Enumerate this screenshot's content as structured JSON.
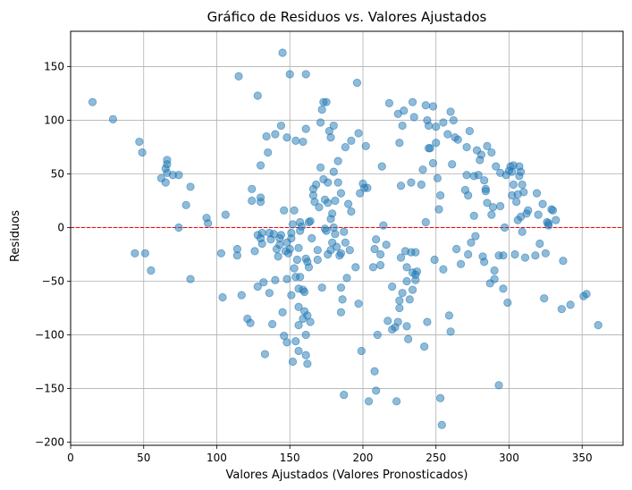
{
  "chart_data": {
    "type": "scatter",
    "title": "Gráfico de Residuos vs. Valores Ajustados",
    "xlabel": "Valores Ajustados (Valores Pronosticados)",
    "ylabel": "Residuos",
    "xlim": [
      0,
      378
    ],
    "ylim": [
      -203,
      183
    ],
    "xticks": [
      0,
      50,
      100,
      150,
      200,
      250,
      300,
      350
    ],
    "yticks": [
      -200,
      -150,
      -100,
      -50,
      0,
      50,
      100,
      150
    ],
    "grid": true,
    "point_color": "#1f77b4",
    "point_alpha": 0.5,
    "reference_line": {
      "y": 0,
      "color": "#ff0000",
      "style": "dashed"
    },
    "points": [
      [
        15,
        117
      ],
      [
        29,
        101
      ],
      [
        44,
        -24
      ],
      [
        47,
        80
      ],
      [
        49,
        70
      ],
      [
        51,
        -24
      ],
      [
        55,
        -40
      ],
      [
        62,
        46
      ],
      [
        65,
        55
      ],
      [
        65,
        42
      ],
      [
        66,
        59
      ],
      [
        66,
        63
      ],
      [
        66,
        51
      ],
      [
        70,
        49
      ],
      [
        74,
        0
      ],
      [
        74,
        49
      ],
      [
        79,
        21
      ],
      [
        82,
        38
      ],
      [
        82,
        -48
      ],
      [
        93,
        9
      ],
      [
        94,
        4
      ],
      [
        103,
        -24
      ],
      [
        104,
        -65
      ],
      [
        106,
        12
      ],
      [
        114,
        -20
      ],
      [
        114,
        -26
      ],
      [
        115,
        141
      ],
      [
        117,
        -63
      ],
      [
        121,
        -85
      ],
      [
        123,
        -89
      ],
      [
        124,
        36
      ],
      [
        124,
        25
      ],
      [
        126,
        -22
      ],
      [
        128,
        123
      ],
      [
        128,
        -7
      ],
      [
        128,
        -55
      ],
      [
        130,
        24
      ],
      [
        130,
        28
      ],
      [
        130,
        58
      ],
      [
        130,
        -10
      ],
      [
        131,
        -5
      ],
      [
        131,
        -15
      ],
      [
        132,
        -51
      ],
      [
        133,
        -118
      ],
      [
        134,
        85
      ],
      [
        135,
        70
      ],
      [
        136,
        -61
      ],
      [
        136,
        -5
      ],
      [
        137,
        -11
      ],
      [
        138,
        -90
      ],
      [
        139,
        -6
      ],
      [
        140,
        -49
      ],
      [
        140,
        87
      ],
      [
        141,
        -20
      ],
      [
        142,
        -27
      ],
      [
        143,
        -10
      ],
      [
        143,
        -16
      ],
      [
        144,
        95
      ],
      [
        144,
        -7
      ],
      [
        145,
        163
      ],
      [
        145,
        -79
      ],
      [
        146,
        -101
      ],
      [
        146,
        16
      ],
      [
        147,
        -22
      ],
      [
        148,
        -107
      ],
      [
        148,
        -48
      ],
      [
        148,
        -14
      ],
      [
        148,
        84
      ],
      [
        149,
        -24
      ],
      [
        150,
        143
      ],
      [
        150,
        -20
      ],
      [
        151,
        -63
      ],
      [
        151,
        -5
      ],
      [
        151,
        -10
      ],
      [
        152,
        -125
      ],
      [
        152,
        3
      ],
      [
        153,
        16
      ],
      [
        153,
        -38
      ],
      [
        154,
        -106
      ],
      [
        154,
        -46
      ],
      [
        154,
        81
      ],
      [
        155,
        -30
      ],
      [
        156,
        -115
      ],
      [
        156,
        -91
      ],
      [
        156,
        -57
      ],
      [
        156,
        -74
      ],
      [
        156,
        -19
      ],
      [
        157,
        -46
      ],
      [
        157,
        -3
      ],
      [
        157,
        5
      ],
      [
        158,
        1
      ],
      [
        159,
        -58
      ],
      [
        159,
        -85
      ],
      [
        159,
        80
      ],
      [
        160,
        -60
      ],
      [
        160,
        -78
      ],
      [
        161,
        143
      ],
      [
        161,
        -119
      ],
      [
        161,
        -100
      ],
      [
        161,
        -29
      ],
      [
        161,
        92
      ],
      [
        162,
        -127
      ],
      [
        162,
        -82
      ],
      [
        162,
        -32
      ],
      [
        163,
        5
      ],
      [
        163,
        -37
      ],
      [
        164,
        -88
      ],
      [
        164,
        6
      ],
      [
        165,
        -10
      ],
      [
        166,
        30
      ],
      [
        166,
        36
      ],
      [
        167,
        24
      ],
      [
        168,
        40
      ],
      [
        169,
        -30
      ],
      [
        169,
        -21
      ],
      [
        170,
        19
      ],
      [
        171,
        56
      ],
      [
        171,
        98
      ],
      [
        172,
        -56
      ],
      [
        172,
        110
      ],
      [
        173,
        117
      ],
      [
        173,
        45
      ],
      [
        174,
        -1
      ],
      [
        174,
        26
      ],
      [
        175,
        117
      ],
      [
        175,
        -3
      ],
      [
        176,
        -25
      ],
      [
        176,
        42
      ],
      [
        176,
        23
      ],
      [
        177,
        90
      ],
      [
        178,
        8
      ],
      [
        178,
        -21
      ],
      [
        178,
        84
      ],
      [
        179,
        -14
      ],
      [
        179,
        13
      ],
      [
        180,
        52
      ],
      [
        180,
        0
      ],
      [
        180,
        95
      ],
      [
        181,
        25
      ],
      [
        181,
        -6
      ],
      [
        182,
        -18
      ],
      [
        183,
        62
      ],
      [
        183,
        42
      ],
      [
        184,
        -26
      ],
      [
        185,
        -24
      ],
      [
        185,
        -79
      ],
      [
        185,
        32
      ],
      [
        185,
        -56
      ],
      [
        186,
        -67
      ],
      [
        187,
        -156
      ],
      [
        187,
        -4
      ],
      [
        188,
        -14
      ],
      [
        188,
        75
      ],
      [
        189,
        -47
      ],
      [
        190,
        22
      ],
      [
        191,
        -21
      ],
      [
        192,
        15
      ],
      [
        192,
        81
      ],
      [
        195,
        -37
      ],
      [
        196,
        135
      ],
      [
        197,
        -71
      ],
      [
        197,
        88
      ],
      [
        198,
        32
      ],
      [
        199,
        -115
      ],
      [
        200,
        41
      ],
      [
        201,
        37
      ],
      [
        202,
        76
      ],
      [
        203,
        37
      ],
      [
        204,
        -162
      ],
      [
        207,
        -37
      ],
      [
        208,
        -134
      ],
      [
        208,
        -20
      ],
      [
        209,
        -11
      ],
      [
        209,
        -152
      ],
      [
        210,
        -100
      ],
      [
        212,
        -25
      ],
      [
        212,
        -35
      ],
      [
        213,
        57
      ],
      [
        214,
        2
      ],
      [
        216,
        -16
      ],
      [
        217,
        -87
      ],
      [
        218,
        116
      ],
      [
        220,
        -95
      ],
      [
        220,
        -55
      ],
      [
        222,
        -93
      ],
      [
        223,
        -162
      ],
      [
        224,
        -88
      ],
      [
        224,
        106
      ],
      [
        225,
        79
      ],
      [
        225,
        -68
      ],
      [
        225,
        -75
      ],
      [
        226,
        -28
      ],
      [
        226,
        39
      ],
      [
        227,
        -61
      ],
      [
        227,
        95
      ],
      [
        228,
        109
      ],
      [
        229,
        -22
      ],
      [
        230,
        -92
      ],
      [
        230,
        -37
      ],
      [
        230,
        -50
      ],
      [
        231,
        -104
      ],
      [
        232,
        -67
      ],
      [
        233,
        42
      ],
      [
        233,
        -23
      ],
      [
        234,
        -42
      ],
      [
        234,
        117
      ],
      [
        234,
        -58
      ],
      [
        235,
        103
      ],
      [
        236,
        -23
      ],
      [
        236,
        -49
      ],
      [
        236,
        -44
      ],
      [
        237,
        -41
      ],
      [
        240,
        40
      ],
      [
        241,
        54
      ],
      [
        242,
        -111
      ],
      [
        243,
        5
      ],
      [
        243,
        114
      ],
      [
        244,
        -88
      ],
      [
        244,
        100
      ],
      [
        245,
        95
      ],
      [
        245,
        74
      ],
      [
        246,
        74
      ],
      [
        248,
        60
      ],
      [
        248,
        113
      ],
      [
        249,
        -30
      ],
      [
        250,
        79
      ],
      [
        250,
        94
      ],
      [
        251,
        46
      ],
      [
        252,
        17
      ],
      [
        253,
        30
      ],
      [
        253,
        -159
      ],
      [
        254,
        -184
      ],
      [
        255,
        -39
      ],
      [
        255,
        98
      ],
      [
        258,
        87
      ],
      [
        259,
        -82
      ],
      [
        260,
        -97
      ],
      [
        260,
        108
      ],
      [
        261,
        59
      ],
      [
        262,
        100
      ],
      [
        263,
        84
      ],
      [
        264,
        -20
      ],
      [
        265,
        82
      ],
      [
        267,
        -34
      ],
      [
        270,
        35
      ],
      [
        271,
        49
      ],
      [
        271,
        75
      ],
      [
        272,
        30
      ],
      [
        272,
        -25
      ],
      [
        273,
        90
      ],
      [
        274,
        -14
      ],
      [
        276,
        11
      ],
      [
        276,
        48
      ],
      [
        277,
        -8
      ],
      [
        278,
        72
      ],
      [
        279,
        49
      ],
      [
        280,
        63
      ],
      [
        281,
        68
      ],
      [
        282,
        -27
      ],
      [
        283,
        -32
      ],
      [
        283,
        44
      ],
      [
        284,
        34
      ],
      [
        284,
        36
      ],
      [
        285,
        76
      ],
      [
        285,
        23
      ],
      [
        287,
        -52
      ],
      [
        288,
        70
      ],
      [
        288,
        12
      ],
      [
        289,
        19
      ],
      [
        290,
        -40
      ],
      [
        290,
        -48
      ],
      [
        291,
        57
      ],
      [
        293,
        -147
      ],
      [
        293,
        -26
      ],
      [
        294,
        51
      ],
      [
        294,
        20
      ],
      [
        296,
        -57
      ],
      [
        296,
        -26
      ],
      [
        297,
        0
      ],
      [
        298,
        49
      ],
      [
        299,
        -70
      ],
      [
        300,
        53
      ],
      [
        301,
        57
      ],
      [
        302,
        52
      ],
      [
        302,
        30
      ],
      [
        303,
        40
      ],
      [
        303,
        58
      ],
      [
        304,
        -25
      ],
      [
        305,
        24
      ],
      [
        306,
        31
      ],
      [
        306,
        7
      ],
      [
        307,
        48
      ],
      [
        307,
        57
      ],
      [
        308,
        52
      ],
      [
        308,
        10
      ],
      [
        309,
        40
      ],
      [
        309,
        -4
      ],
      [
        310,
        33
      ],
      [
        311,
        -28
      ],
      [
        312,
        13
      ],
      [
        313,
        16
      ],
      [
        318,
        -26
      ],
      [
        319,
        32
      ],
      [
        320,
        12
      ],
      [
        321,
        -15
      ],
      [
        323,
        22
      ],
      [
        324,
        -66
      ],
      [
        325,
        -24
      ],
      [
        326,
        5
      ],
      [
        327,
        2
      ],
      [
        327,
        4
      ],
      [
        329,
        17
      ],
      [
        330,
        16
      ],
      [
        332,
        7
      ],
      [
        336,
        -76
      ],
      [
        337,
        -31
      ],
      [
        342,
        -72
      ],
      [
        351,
        -64
      ],
      [
        353,
        -62
      ],
      [
        361,
        -91
      ]
    ]
  }
}
